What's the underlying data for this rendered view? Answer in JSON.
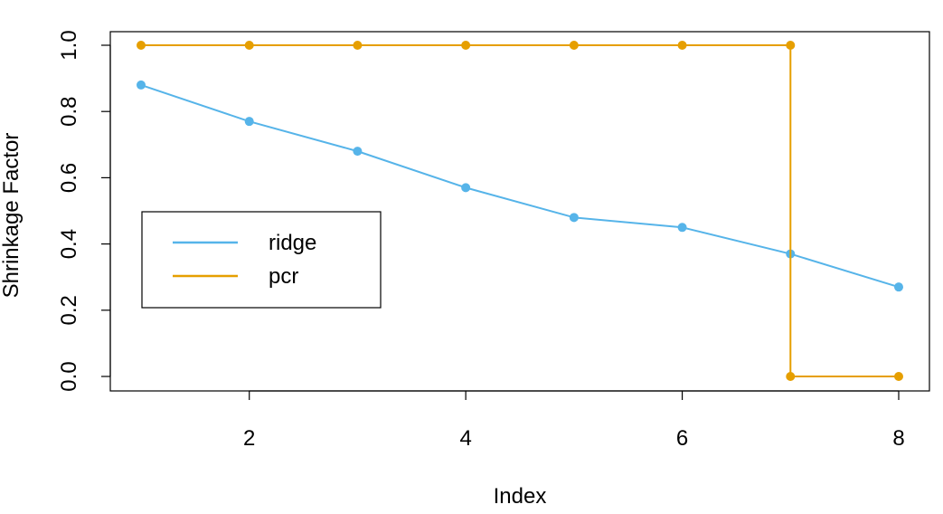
{
  "chart_data": {
    "type": "line",
    "title": "",
    "xlabel": "Index",
    "ylabel": "Shrinkage Factor",
    "x": [
      1,
      2,
      3,
      4,
      5,
      6,
      7,
      8
    ],
    "xlim": [
      1,
      8
    ],
    "ylim": [
      0,
      1
    ],
    "x_ticks": [
      2,
      4,
      6,
      8
    ],
    "y_ticks": [
      0.0,
      0.2,
      0.4,
      0.6,
      0.8,
      1.0
    ],
    "y_tick_labels": [
      "0.0",
      "0.2",
      "0.4",
      "0.6",
      "0.8",
      "1.0"
    ],
    "grid": false,
    "legend_position": "middle-left",
    "series": [
      {
        "name": "ridge",
        "color": "#56B4E9",
        "points": [
          {
            "x": 1,
            "y": 0.88
          },
          {
            "x": 2,
            "y": 0.77
          },
          {
            "x": 3,
            "y": 0.68
          },
          {
            "x": 4,
            "y": 0.57
          },
          {
            "x": 5,
            "y": 0.48
          },
          {
            "x": 6,
            "y": 0.45
          },
          {
            "x": 7,
            "y": 0.37
          },
          {
            "x": 8,
            "y": 0.27
          }
        ]
      },
      {
        "name": "pcr",
        "color": "#E69F00",
        "points": [
          {
            "x": 1,
            "y": 1.0
          },
          {
            "x": 2,
            "y": 1.0
          },
          {
            "x": 3,
            "y": 1.0
          },
          {
            "x": 4,
            "y": 1.0
          },
          {
            "x": 5,
            "y": 1.0
          },
          {
            "x": 6,
            "y": 1.0
          },
          {
            "x": 7,
            "y": 1.0
          },
          {
            "x": 7,
            "y": 0.0
          },
          {
            "x": 8,
            "y": 0.0
          }
        ]
      }
    ]
  }
}
